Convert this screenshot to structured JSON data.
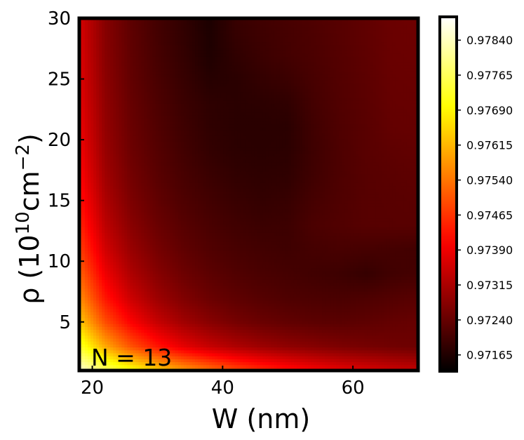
{
  "chart_data": {
    "type": "heatmap",
    "title": "",
    "xlabel": "W (nm)",
    "ylabel_base": "ρ (10",
    "ylabel_exp1": "10",
    "ylabel_mid": "cm",
    "ylabel_exp2": "−2",
    "ylabel_end": ")",
    "annotation": "N = 13",
    "xlim": [
      18,
      70
    ],
    "ylim": [
      1,
      30
    ],
    "x_ticks": [
      20,
      40,
      60
    ],
    "y_ticks": [
      5,
      10,
      15,
      20,
      25,
      30
    ],
    "colorbar": {
      "colormap": "hot",
      "vmin": 0.9713,
      "vmax": 0.9789,
      "ticks": [
        "0.97165",
        "0.97240",
        "0.97315",
        "0.97390",
        "0.97465",
        "0.97540",
        "0.97615",
        "0.97690",
        "0.97765",
        "0.97840"
      ]
    },
    "x": [
      18,
      22,
      26,
      30,
      34,
      38,
      42,
      46,
      50,
      54,
      58,
      62,
      66,
      70
    ],
    "y": [
      1,
      3,
      5,
      7,
      9,
      11,
      13,
      15,
      17,
      19,
      21,
      23,
      25,
      27,
      29,
      30
    ],
    "z": [
      [
        0.9786,
        0.9778,
        0.97715,
        0.9765,
        0.9759,
        0.9754,
        0.97495,
        0.9746,
        0.9743,
        0.97405,
        0.97385,
        0.9737,
        0.97355,
        0.97345
      ],
      [
        0.97735,
        0.976,
        0.975,
        0.9743,
        0.9738,
        0.97345,
        0.9732,
        0.973,
        0.97285,
        0.97275,
        0.97265,
        0.97258,
        0.97252,
        0.97248
      ],
      [
        0.9764,
        0.97495,
        0.97405,
        0.97345,
        0.97305,
        0.97278,
        0.97258,
        0.97245,
        0.97236,
        0.9723,
        0.97228,
        0.97232,
        0.97238,
        0.97242
      ],
      [
        0.9757,
        0.9743,
        0.9735,
        0.973,
        0.97268,
        0.97246,
        0.97232,
        0.97222,
        0.97215,
        0.97212,
        0.9721,
        0.97214,
        0.9722,
        0.97225
      ],
      [
        0.9752,
        0.9739,
        0.97318,
        0.97276,
        0.97248,
        0.9723,
        0.97218,
        0.9721,
        0.97205,
        0.972,
        0.97196,
        0.97188,
        0.972,
        0.97205
      ],
      [
        0.9748,
        0.97358,
        0.97295,
        0.97258,
        0.97234,
        0.97218,
        0.97208,
        0.97202,
        0.97198,
        0.97205,
        0.97208,
        0.97206,
        0.97204,
        0.97202
      ],
      [
        0.9745,
        0.97335,
        0.97278,
        0.97245,
        0.97224,
        0.9721,
        0.972,
        0.97194,
        0.97196,
        0.97212,
        0.97218,
        0.97224,
        0.97225,
        0.97226
      ],
      [
        0.97428,
        0.97318,
        0.97265,
        0.97235,
        0.97215,
        0.97202,
        0.97192,
        0.97186,
        0.9719,
        0.97206,
        0.97216,
        0.97224,
        0.97226,
        0.97228
      ],
      [
        0.9741,
        0.97305,
        0.97255,
        0.97227,
        0.97208,
        0.97194,
        0.97184,
        0.9718,
        0.97182,
        0.972,
        0.97214,
        0.97224,
        0.97228,
        0.97232
      ],
      [
        0.97398,
        0.97296,
        0.97248,
        0.97222,
        0.97202,
        0.97186,
        0.97178,
        0.97176,
        0.97178,
        0.97198,
        0.97214,
        0.97226,
        0.97232,
        0.97236
      ],
      [
        0.97388,
        0.9729,
        0.97244,
        0.97218,
        0.97198,
        0.97182,
        0.97176,
        0.97175,
        0.97176,
        0.972,
        0.97216,
        0.97226,
        0.97238,
        0.9724
      ],
      [
        0.9738,
        0.97286,
        0.9724,
        0.97214,
        0.97194,
        0.9718,
        0.97176,
        0.97178,
        0.97182,
        0.97204,
        0.97218,
        0.97228,
        0.9724,
        0.97242
      ],
      [
        0.97374,
        0.97282,
        0.97236,
        0.9721,
        0.9719,
        0.97172,
        0.97176,
        0.97186,
        0.97194,
        0.97208,
        0.9722,
        0.9723,
        0.97242,
        0.97244
      ],
      [
        0.9737,
        0.97278,
        0.97234,
        0.97206,
        0.97186,
        0.97164,
        0.97182,
        0.97194,
        0.97204,
        0.97212,
        0.97222,
        0.97232,
        0.97244,
        0.97246
      ],
      [
        0.97366,
        0.97276,
        0.97232,
        0.97204,
        0.97184,
        0.97162,
        0.97188,
        0.97198,
        0.97206,
        0.97214,
        0.97224,
        0.97234,
        0.97245,
        0.97248
      ],
      [
        0.97364,
        0.97275,
        0.97231,
        0.97203,
        0.97183,
        0.9716,
        0.9719,
        0.972,
        0.97208,
        0.97216,
        0.97225,
        0.97235,
        0.97246,
        0.97249
      ]
    ]
  }
}
